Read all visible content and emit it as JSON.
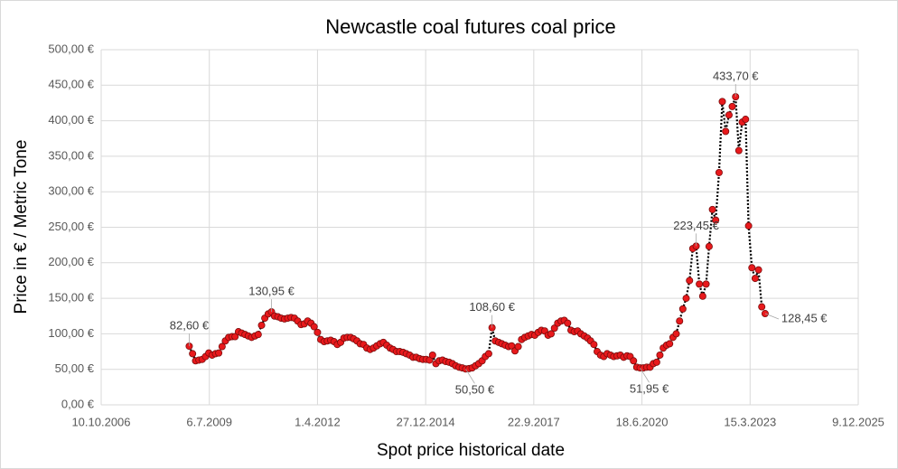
{
  "chart_data": {
    "type": "line",
    "title": "Newcastle coal futures coal price",
    "x_label": "Spot price historical date",
    "y_label": "Price in € / Metric Tone",
    "grid": true,
    "xlim": [
      "10.10.2006",
      "9.12.2025"
    ],
    "xticks": [
      "10.10.2006",
      "6.7.2009",
      "1.4.2012",
      "27.12.2014",
      "22.9.2017",
      "18.6.2020",
      "15.3.2023",
      "9.12.2025"
    ],
    "ylim": [
      0,
      500
    ],
    "yticks": [
      {
        "value": 0,
        "label": "0,00 €"
      },
      {
        "value": 50,
        "label": "50,00 €"
      },
      {
        "value": 100,
        "label": "100,00 €"
      },
      {
        "value": 150,
        "label": "150,00 €"
      },
      {
        "value": 200,
        "label": "200,00 €"
      },
      {
        "value": 250,
        "label": "250,00 €"
      },
      {
        "value": 300,
        "label": "300,00 €"
      },
      {
        "value": 350,
        "label": "350,00 €"
      },
      {
        "value": 400,
        "label": "400,00 €"
      },
      {
        "value": 450,
        "label": "450,00 €"
      },
      {
        "value": 500,
        "label": "500,00 €"
      }
    ],
    "x": [
      "1.1.2009",
      "1.2.2009",
      "1.3.2009",
      "1.4.2009",
      "1.5.2009",
      "1.6.2009",
      "1.7.2009",
      "1.8.2009",
      "1.9.2009",
      "1.10.2009",
      "1.11.2009",
      "1.12.2009",
      "1.1.2010",
      "1.2.2010",
      "1.3.2010",
      "1.4.2010",
      "1.5.2010",
      "1.6.2010",
      "1.7.2010",
      "1.8.2010",
      "1.9.2010",
      "1.10.2010",
      "1.11.2010",
      "1.12.2010",
      "1.1.2011",
      "1.2.2011",
      "1.3.2011",
      "1.4.2011",
      "1.5.2011",
      "1.6.2011",
      "1.7.2011",
      "1.8.2011",
      "1.9.2011",
      "1.10.2011",
      "1.11.2011",
      "1.12.2011",
      "1.1.2012",
      "1.2.2012",
      "1.3.2012",
      "1.4.2012",
      "1.5.2012",
      "1.6.2012",
      "1.7.2012",
      "1.8.2012",
      "1.9.2012",
      "1.10.2012",
      "1.11.2012",
      "1.12.2012",
      "1.1.2013",
      "1.2.2013",
      "1.3.2013",
      "1.4.2013",
      "1.5.2013",
      "1.6.2013",
      "1.7.2013",
      "1.8.2013",
      "1.9.2013",
      "1.10.2013",
      "1.11.2013",
      "1.12.2013",
      "1.1.2014",
      "1.2.2014",
      "1.3.2014",
      "1.4.2014",
      "1.5.2014",
      "1.6.2014",
      "1.7.2014",
      "1.8.2014",
      "1.9.2014",
      "1.10.2014",
      "1.11.2014",
      "1.12.2014",
      "1.1.2015",
      "1.2.2015",
      "1.3.2015",
      "1.4.2015",
      "1.5.2015",
      "1.6.2015",
      "1.7.2015",
      "1.8.2015",
      "1.9.2015",
      "1.10.2015",
      "1.11.2015",
      "1.12.2015",
      "1.1.2016",
      "1.2.2016",
      "1.3.2016",
      "1.4.2016",
      "1.5.2016",
      "1.6.2016",
      "1.7.2016",
      "1.8.2016",
      "1.9.2016",
      "1.10.2016",
      "1.11.2016",
      "1.12.2016",
      "1.1.2017",
      "1.2.2017",
      "1.3.2017",
      "1.4.2017",
      "1.5.2017",
      "1.6.2017",
      "1.7.2017",
      "1.8.2017",
      "1.9.2017",
      "1.10.2017",
      "1.11.2017",
      "1.12.2017",
      "1.1.2018",
      "1.2.2018",
      "1.3.2018",
      "1.4.2018",
      "1.5.2018",
      "1.6.2018",
      "1.7.2018",
      "1.8.2018",
      "1.9.2018",
      "1.10.2018",
      "1.11.2018",
      "1.12.2018",
      "1.1.2019",
      "1.2.2019",
      "1.3.2019",
      "1.4.2019",
      "1.5.2019",
      "1.6.2019",
      "1.7.2019",
      "1.8.2019",
      "1.9.2019",
      "1.10.2019",
      "1.11.2019",
      "1.12.2019",
      "1.1.2020",
      "1.2.2020",
      "1.3.2020",
      "1.4.2020",
      "1.5.2020",
      "1.6.2020",
      "1.7.2020",
      "1.8.2020",
      "1.9.2020",
      "1.10.2020",
      "1.11.2020",
      "1.12.2020",
      "1.1.2021",
      "1.2.2021",
      "1.3.2021",
      "1.4.2021",
      "1.5.2021",
      "1.6.2021",
      "1.7.2021",
      "1.8.2021",
      "1.9.2021",
      "1.10.2021",
      "1.11.2021",
      "1.12.2021",
      "1.1.2022",
      "1.2.2022",
      "1.3.2022",
      "1.4.2022",
      "1.5.2022",
      "1.6.2022",
      "1.7.2022",
      "1.8.2022",
      "1.9.2022",
      "1.10.2022",
      "1.11.2022",
      "1.12.2022",
      "1.1.2023",
      "1.2.2023",
      "1.3.2023",
      "1.4.2023",
      "1.5.2023",
      "1.6.2023",
      "1.7.2023",
      "1.8.2023"
    ],
    "series": [
      {
        "color": "#e8191c",
        "values": [
          82.6,
          72,
          62,
          63,
          64,
          68,
          73,
          70,
          72,
          73,
          82,
          90,
          95,
          96,
          96,
          103,
          101,
          99,
          97,
          95,
          97,
          99,
          112,
          122,
          128,
          130.95,
          125,
          124,
          122,
          121,
          122,
          123,
          122,
          118,
          113,
          114,
          118,
          115,
          110,
          102,
          92,
          89,
          90,
          91,
          89,
          85,
          88,
          94,
          95,
          95,
          93,
          90,
          86,
          85,
          80,
          78,
          80,
          83,
          86,
          88,
          84,
          80,
          78,
          75,
          75,
          74,
          72,
          70,
          67,
          67,
          65,
          64,
          64,
          63,
          70,
          58,
          62,
          63,
          61,
          60,
          58,
          55,
          53,
          52,
          50.5,
          51,
          52,
          55,
          58,
          62,
          68,
          72,
          108.6,
          90,
          88,
          86,
          84,
          82,
          83,
          76,
          82,
          92,
          95,
          97,
          99,
          98,
          102,
          105,
          104,
          98,
          100,
          108,
          115,
          118,
          119,
          115,
          105,
          103,
          104,
          100,
          97,
          94,
          90,
          85,
          75,
          70,
          68,
          72,
          70,
          68,
          69,
          70,
          67,
          69,
          68,
          62,
          53,
          51.95,
          52,
          53,
          53,
          58,
          60,
          70,
          80,
          84,
          86,
          95,
          100,
          118,
          135,
          150,
          175,
          220,
          223.45,
          170,
          153,
          170,
          223,
          275,
          260,
          327,
          427,
          385,
          408,
          420,
          433.7,
          358,
          398,
          402,
          252,
          193,
          178,
          190,
          138,
          128.45
        ],
        "value_labels": [
          "82,60 €",
          null,
          null,
          null,
          null,
          null,
          null,
          null,
          null,
          null,
          null,
          null,
          null,
          null,
          null,
          null,
          null,
          null,
          null,
          null,
          null,
          null,
          null,
          null,
          null,
          "130,95 €",
          null,
          null,
          null,
          null,
          null,
          null,
          null,
          null,
          null,
          null,
          null,
          null,
          null,
          null,
          null,
          null,
          null,
          null,
          null,
          null,
          null,
          null,
          null,
          null,
          null,
          null,
          null,
          null,
          null,
          null,
          null,
          null,
          null,
          null,
          null,
          null,
          null,
          null,
          null,
          null,
          null,
          null,
          null,
          null,
          null,
          null,
          null,
          null,
          null,
          null,
          null,
          null,
          null,
          null,
          null,
          null,
          null,
          null,
          "50,50 €",
          null,
          null,
          null,
          null,
          null,
          null,
          null,
          "108,60 €",
          null,
          null,
          null,
          null,
          null,
          null,
          null,
          null,
          null,
          null,
          null,
          null,
          null,
          null,
          null,
          null,
          null,
          null,
          null,
          null,
          null,
          null,
          null,
          null,
          null,
          null,
          null,
          null,
          null,
          null,
          null,
          null,
          null,
          null,
          null,
          null,
          null,
          null,
          null,
          null,
          null,
          null,
          null,
          null,
          "51,95 €",
          null,
          null,
          null,
          null,
          null,
          null,
          null,
          null,
          null,
          null,
          null,
          null,
          null,
          null,
          null,
          null,
          "223,45 €",
          null,
          null,
          null,
          null,
          null,
          null,
          null,
          null,
          null,
          null,
          null,
          "433,70 €",
          null,
          null,
          null,
          null,
          null,
          null,
          null,
          null,
          "128,45 €"
        ]
      }
    ]
  }
}
